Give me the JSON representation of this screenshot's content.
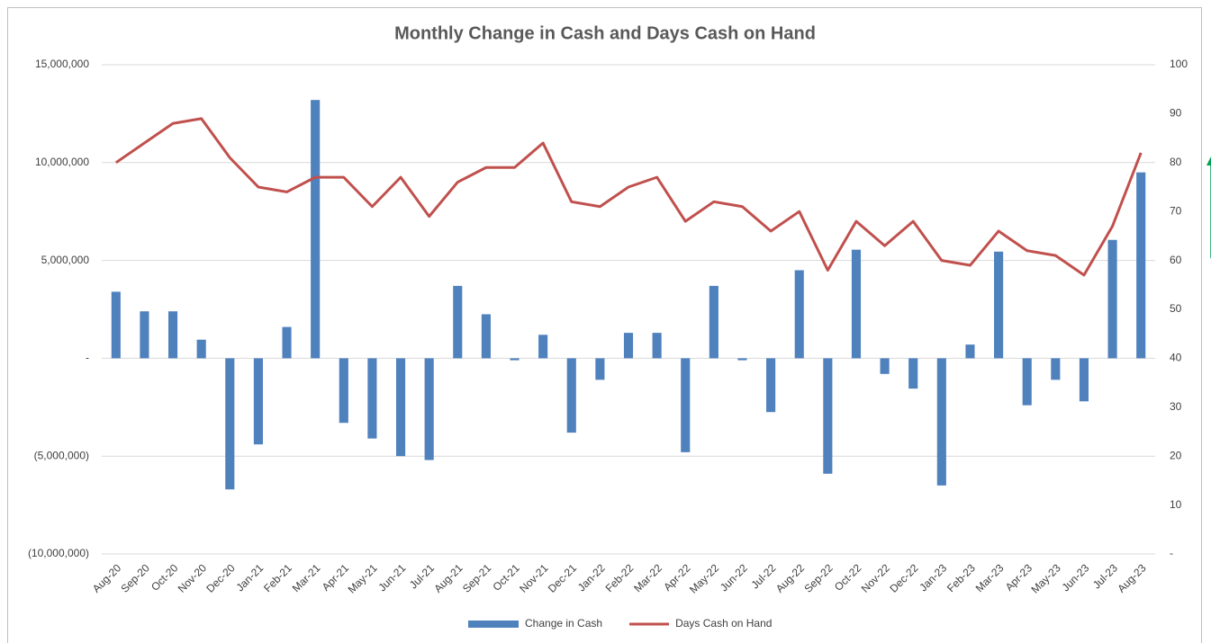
{
  "chart_data": {
    "type": "bar_line",
    "title": "Monthly Change in Cash and Days Cash on Hand",
    "categories": [
      "Aug-20",
      "Sep-20",
      "Oct-20",
      "Nov-20",
      "Dec-20",
      "Jan-21",
      "Feb-21",
      "Mar-21",
      "Apr-21",
      "May-21",
      "Jun-21",
      "Jul-21",
      "Aug-21",
      "Sep-21",
      "Oct-21",
      "Nov-21",
      "Dec-21",
      "Jan-22",
      "Feb-22",
      "Mar-22",
      "Apr-22",
      "May-22",
      "Jun-22",
      "Jul-22",
      "Aug-22",
      "Sep-22",
      "Oct-22",
      "Nov-22",
      "Dec-22",
      "Jan-23",
      "Feb-23",
      "Mar-23",
      "Apr-23",
      "May-23",
      "Jun-23",
      "Jul-23",
      "Aug-23"
    ],
    "series": [
      {
        "name": "Change in Cash",
        "type": "bar",
        "color": "#4f81bd",
        "axis": "y",
        "values": [
          3400000,
          2400000,
          2400000,
          950000,
          -6700000,
          -4400000,
          1600000,
          13200000,
          -3300000,
          -4100000,
          -5000000,
          -5200000,
          3700000,
          2250000,
          -100000,
          1200000,
          -3800000,
          -1100000,
          1300000,
          1300000,
          -4800000,
          3700000,
          -100000,
          -2750000,
          4500000,
          -5900000,
          5550000,
          -800000,
          -1550000,
          -6500000,
          700000,
          5450000,
          -2400000,
          -1100000,
          -2200000,
          6050000,
          9500000
        ]
      },
      {
        "name": "Days Cash on Hand",
        "type": "line",
        "color": "#c0504d",
        "axis": "y2",
        "values": [
          80,
          84,
          88,
          89,
          81,
          75,
          74,
          77,
          77,
          71,
          77,
          69,
          76,
          79,
          79,
          84,
          72,
          71,
          75,
          77,
          68,
          72,
          71,
          66,
          70,
          58,
          68,
          63,
          68,
          60,
          59,
          66,
          62,
          61,
          57,
          67,
          82
        ]
      }
    ],
    "ylim": [
      -10000000,
      15000000
    ],
    "yticks": [
      {
        "value": -10000000,
        "label": "(10,000,000)"
      },
      {
        "value": -5000000,
        "label": "(5,000,000)"
      },
      {
        "value": 0,
        "label": "-"
      },
      {
        "value": 5000000,
        "label": "5,000,000"
      },
      {
        "value": 10000000,
        "label": "10,000,000"
      },
      {
        "value": 15000000,
        "label": "15,000,000"
      }
    ],
    "y2lim": [
      0,
      100
    ],
    "y2ticks": [
      {
        "value": 0,
        "label": "-"
      },
      10,
      20,
      30,
      40,
      50,
      60,
      70,
      80,
      90,
      100
    ],
    "grid": true,
    "legend": "bottom"
  }
}
